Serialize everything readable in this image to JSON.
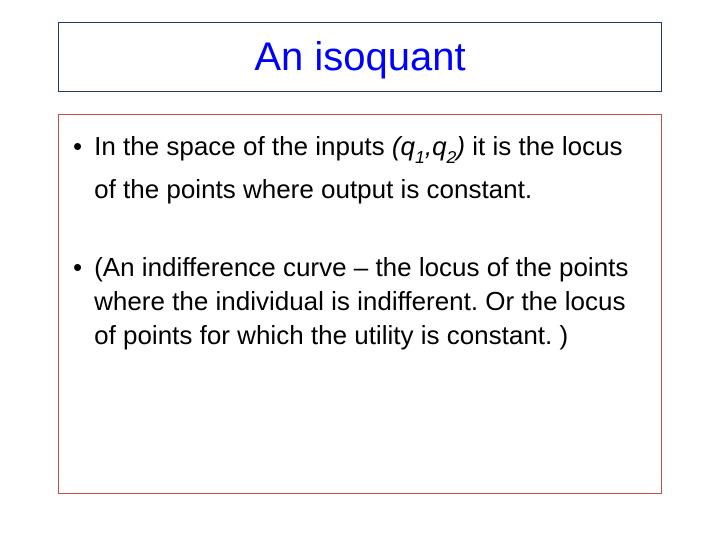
{
  "title": {
    "text": "An isoquant",
    "color": "#0000ff",
    "fontsize": 40,
    "border_color": "#233a6a"
  },
  "body": {
    "border_color": "#c0504d",
    "text_color": "#000000",
    "fontsize": 26,
    "bullets": [
      {
        "pre": "In the space of the inputs ",
        "var_open": "(q",
        "s1": "1",
        "comma": ",q",
        "s2": "2",
        "var_close": ")",
        "post": " it is the locus of the points where output is constant."
      },
      {
        "text": "(An indifference curve – the locus of the points where the individual is indifferent. Or the locus of points for which the utility is constant. )"
      }
    ]
  }
}
